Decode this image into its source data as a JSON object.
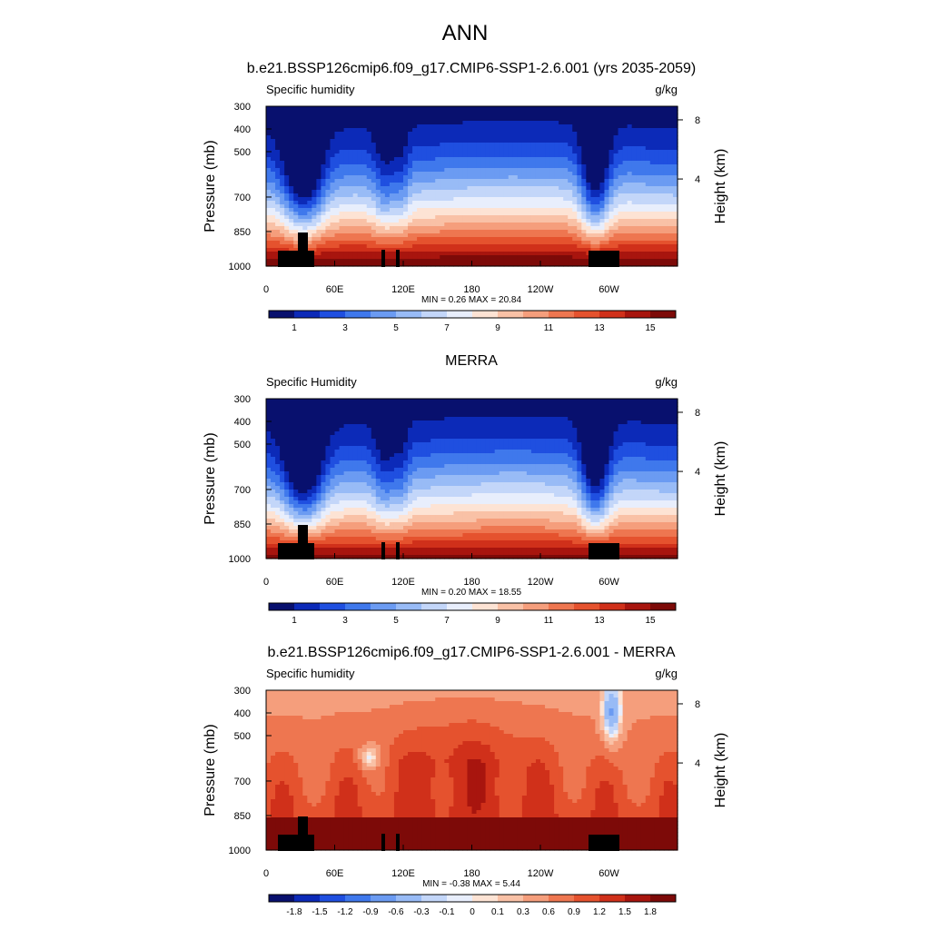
{
  "title": "ANN",
  "chart_data": [
    {
      "type": "heatmap",
      "title": "b.e21.BSSP126cmip6.f09_g17.CMIP6-SSP1-2.6.001 (yrs 2035-2059)",
      "variable": "Specific humidity",
      "units": "g/kg",
      "ylabel": "Pressure (mb)",
      "ylabel_right": "Height (km)",
      "x_ticks": [
        "0",
        "60E",
        "120E",
        "180",
        "120W",
        "60W"
      ],
      "y_ticks": [
        "300",
        "400",
        "500",
        "700",
        "850",
        "1000"
      ],
      "right_ticks": [
        "8",
        "4"
      ],
      "stats": "MIN =   0.26  MAX =  20.84",
      "colorbar_labels": [
        "1",
        "3",
        "5",
        "7",
        "9",
        "11",
        "13",
        "15"
      ],
      "palette": [
        "#08106e",
        "#0c2ab8",
        "#1f4fe0",
        "#3f78ec",
        "#6b9bf2",
        "#98bbf6",
        "#c3d6f9",
        "#e8eefc",
        "#fde3d4",
        "#f9c1a6",
        "#f59e7c",
        "#ee7650",
        "#e5522e",
        "#d0301a",
        "#a8150e",
        "#7d0a08"
      ]
    },
    {
      "type": "heatmap",
      "title": "MERRA",
      "variable": "Specific Humidity",
      "units": "g/kg",
      "ylabel": "Pressure (mb)",
      "ylabel_right": "Height (km)",
      "x_ticks": [
        "0",
        "60E",
        "120E",
        "180",
        "120W",
        "60W"
      ],
      "y_ticks": [
        "300",
        "400",
        "500",
        "700",
        "850",
        "1000"
      ],
      "right_ticks": [
        "8",
        "4"
      ],
      "stats": "MIN =   0.20  MAX =  18.55",
      "colorbar_labels": [
        "1",
        "3",
        "5",
        "7",
        "9",
        "11",
        "13",
        "15"
      ],
      "palette": [
        "#08106e",
        "#0c2ab8",
        "#1f4fe0",
        "#3f78ec",
        "#6b9bf2",
        "#98bbf6",
        "#c3d6f9",
        "#e8eefc",
        "#fde3d4",
        "#f9c1a6",
        "#f59e7c",
        "#ee7650",
        "#e5522e",
        "#d0301a",
        "#a8150e",
        "#7d0a08"
      ]
    },
    {
      "type": "heatmap",
      "title": "b.e21.BSSP126cmip6.f09_g17.CMIP6-SSP1-2.6.001 - MERRA",
      "variable": "Specific humidity",
      "units": "g/kg",
      "ylabel": "Pressure (mb)",
      "ylabel_right": "Height (km)",
      "x_ticks": [
        "0",
        "60E",
        "120E",
        "180",
        "120W",
        "60W"
      ],
      "y_ticks": [
        "300",
        "400",
        "500",
        "700",
        "850",
        "1000"
      ],
      "right_ticks": [
        "8",
        "4"
      ],
      "stats": "MIN =  -0.38  MAX =   5.44",
      "colorbar_labels": [
        "-1.8",
        "-1.5",
        "-1.2",
        "-0.9",
        "-0.6",
        "-0.3",
        "-0.1",
        "0",
        "0.1",
        "0.3",
        "0.6",
        "0.9",
        "1.2",
        "1.5",
        "1.8"
      ],
      "palette": [
        "#08106e",
        "#0c2ab8",
        "#1f4fe0",
        "#3f78ec",
        "#6b9bf2",
        "#98bbf6",
        "#c3d6f9",
        "#e8eefc",
        "#fde3d4",
        "#f9c1a6",
        "#f59e7c",
        "#ee7650",
        "#e5522e",
        "#d0301a",
        "#a8150e",
        "#7d0a08"
      ]
    }
  ]
}
